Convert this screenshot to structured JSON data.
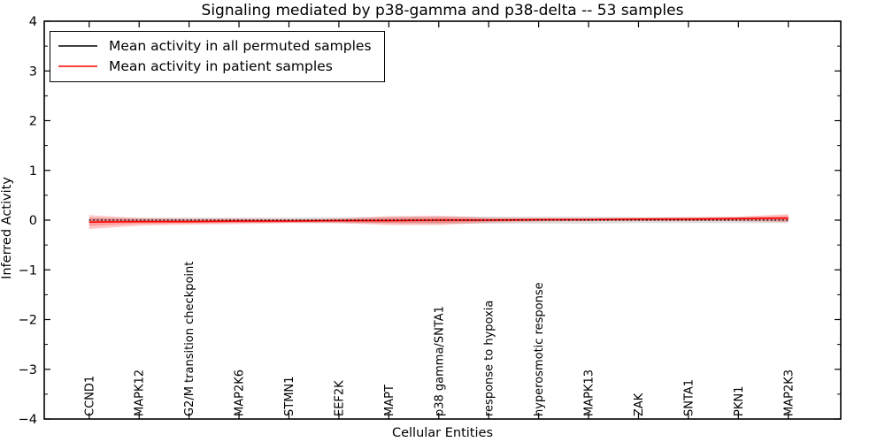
{
  "chart_data": {
    "type": "line",
    "title": "Signaling mediated by p38-gamma and p38-delta -- 53 samples",
    "xlabel": "Cellular Entities",
    "ylabel": "Inferred Activity",
    "xlim": [
      -0.9,
      15.05
    ],
    "ylim": [
      -4,
      4
    ],
    "yticks": [
      -4,
      -3,
      -2,
      -1,
      0,
      1,
      2,
      3,
      4
    ],
    "ytick_labels": [
      "−4",
      "−3",
      "−2",
      "−1",
      "0",
      "1",
      "2",
      "3",
      "4"
    ],
    "y_minor_step": 0.5,
    "grid": false,
    "legend_position": "upper left",
    "background": "#ffffff",
    "categories": [
      "CCND1",
      "MAPK12",
      "G2/M transition checkpoint",
      "MAP2K6",
      "STMN1",
      "EEF2K",
      "MAPT",
      "p38 gamma/SNTA1",
      "response to hypoxia",
      "hyperosmotic response",
      "MAPK13",
      "ZAK",
      "SNTA1",
      "PKN1",
      "MAP2K3"
    ],
    "series": [
      {
        "name": "Mean activity in all permuted samples",
        "color": "#000000",
        "line_style": "dotted",
        "values": [
          0,
          0,
          0,
          0,
          0,
          0,
          0,
          0,
          0,
          0,
          0,
          0,
          0,
          0,
          0
        ],
        "band_upper": [
          0.05,
          0.05,
          0.05,
          0.05,
          0.05,
          0.06,
          0.06,
          0.07,
          0.07,
          0.07,
          0.07,
          0.06,
          0.06,
          0.06,
          0.06
        ],
        "band_lower": [
          -0.05,
          -0.05,
          -0.05,
          -0.05,
          -0.05,
          -0.06,
          -0.06,
          -0.07,
          -0.07,
          -0.07,
          -0.07,
          -0.06,
          -0.06,
          -0.06,
          -0.06
        ],
        "band_color": "#000000",
        "band_opacity": 0.13
      },
      {
        "name": "Mean activity in patient samples",
        "color": "#ff0000",
        "line_style": "solid",
        "values": [
          -0.04,
          -0.03,
          -0.03,
          -0.02,
          -0.02,
          -0.01,
          -0.01,
          0.0,
          0.0,
          0.01,
          0.01,
          0.02,
          0.02,
          0.03,
          0.04
        ],
        "band_upper": [
          0.1,
          0.04,
          0.03,
          0.03,
          0.02,
          0.03,
          0.08,
          0.09,
          0.05,
          0.04,
          0.04,
          0.05,
          0.06,
          0.07,
          0.12
        ],
        "band_lower": [
          -0.18,
          -0.11,
          -0.09,
          -0.08,
          -0.06,
          -0.06,
          -0.1,
          -0.1,
          -0.05,
          -0.03,
          -0.02,
          -0.02,
          -0.02,
          -0.02,
          -0.04
        ],
        "band_color": "#ff0000",
        "band_opacity": 0.22,
        "inner_band": true
      }
    ]
  }
}
